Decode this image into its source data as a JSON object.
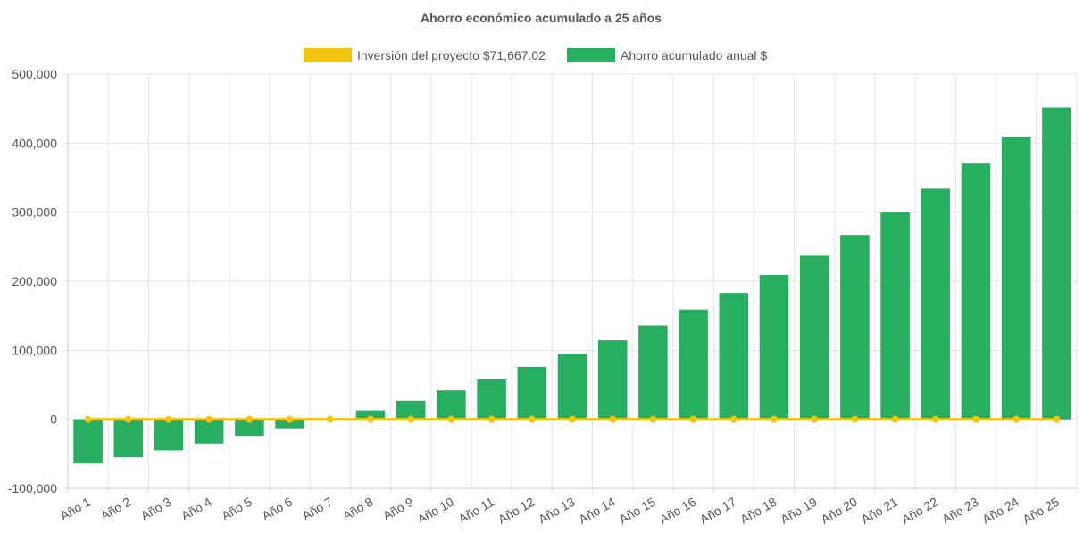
{
  "chart_data": {
    "type": "bar",
    "title": "Ahorro económico acumulado a 25 años",
    "xlabel": "",
    "ylabel": "",
    "ylim": [
      -100000,
      500000
    ],
    "y_ticks": [
      "500,000",
      "400,000",
      "300,000",
      "200,000",
      "100,000",
      "0",
      "-100,000"
    ],
    "y_tick_values": [
      500000,
      400000,
      300000,
      200000,
      100000,
      0,
      -100000
    ],
    "grid": true,
    "legend_position": "top-center",
    "categories": [
      "Año 1",
      "Año 2",
      "Año 3",
      "Año 4",
      "Año 5",
      "Año 6",
      "Año 7",
      "Año 8",
      "Año 9",
      "Año 10",
      "Año 11",
      "Año 12",
      "Año 13",
      "Año 14",
      "Año 15",
      "Año 16",
      "Año 17",
      "Año 18",
      "Año 19",
      "Año 20",
      "Año 21",
      "Año 22",
      "Año 23",
      "Año 24",
      "Año 25"
    ],
    "series": [
      {
        "name": "Inversión del proyecto $71,667.02",
        "type": "line",
        "color": "#f1c40f",
        "values": [
          0,
          0,
          0,
          0,
          0,
          0,
          0,
          0,
          0,
          0,
          0,
          0,
          0,
          0,
          0,
          0,
          0,
          0,
          0,
          0,
          0,
          0,
          0,
          0,
          0
        ]
      },
      {
        "name": "Ahorro acumulado anual $",
        "type": "bar",
        "color": "#27ae60",
        "values": [
          -64000,
          -55000,
          -45000,
          -35000,
          -24000,
          -13000,
          0,
          13000,
          27000,
          42000,
          58000,
          76000,
          95000,
          114500,
          136000,
          159000,
          183000,
          209000,
          237000,
          267000,
          299500,
          334000,
          370500,
          409500,
          451500
        ]
      }
    ]
  }
}
